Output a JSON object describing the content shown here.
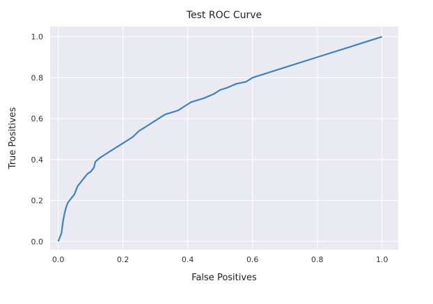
{
  "chart_data": {
    "type": "line",
    "title": "Test ROC Curve",
    "xlabel": "False Positives",
    "ylabel": "True Positives",
    "xlim": [
      -0.025,
      1.05
    ],
    "ylim": [
      -0.04,
      1.05
    ],
    "xticks": [
      0.0,
      0.2,
      0.4,
      0.6,
      0.8,
      1.0
    ],
    "xtick_labels": [
      "0.0",
      "0.2",
      "0.4",
      "0.6",
      "0.8",
      "1.0"
    ],
    "yticks": [
      0.0,
      0.2,
      0.4,
      0.6,
      0.8,
      1.0
    ],
    "ytick_labels": [
      "0.0",
      "0.2",
      "0.4",
      "0.6",
      "0.8",
      "1.0"
    ],
    "grid": true,
    "series": [
      {
        "color": "#3a82c4",
        "x": [
          0.0,
          0.01,
          0.015,
          0.02,
          0.025,
          0.03,
          0.04,
          0.05,
          0.06,
          0.07,
          0.08,
          0.09,
          0.1,
          0.11,
          0.115,
          0.13,
          0.15,
          0.17,
          0.19,
          0.21,
          0.23,
          0.25,
          0.27,
          0.29,
          0.31,
          0.33,
          0.35,
          0.37,
          0.39,
          0.41,
          0.45,
          0.48,
          0.5,
          0.52,
          0.55,
          0.58,
          0.6,
          0.7,
          0.8,
          0.9,
          1.0
        ],
        "y": [
          0.0,
          0.04,
          0.1,
          0.14,
          0.17,
          0.19,
          0.21,
          0.23,
          0.27,
          0.29,
          0.31,
          0.33,
          0.34,
          0.36,
          0.39,
          0.41,
          0.43,
          0.45,
          0.47,
          0.49,
          0.51,
          0.54,
          0.56,
          0.58,
          0.6,
          0.62,
          0.63,
          0.64,
          0.66,
          0.68,
          0.7,
          0.72,
          0.74,
          0.75,
          0.77,
          0.78,
          0.8,
          0.85,
          0.9,
          0.95,
          1.0
        ]
      }
    ]
  }
}
